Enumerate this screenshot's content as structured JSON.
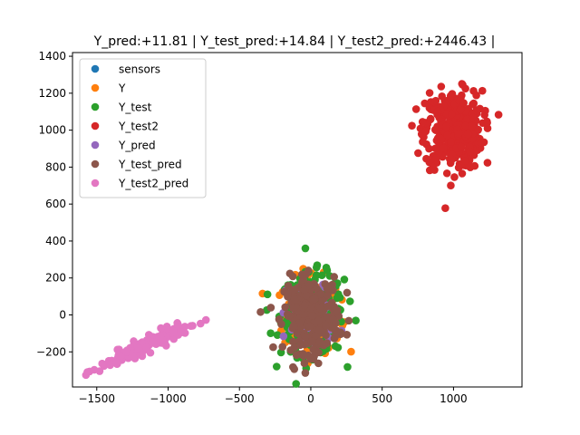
{
  "chart_data": {
    "type": "scatter",
    "title": "Y_pred:+11.81 | Y_test_pred:+14.84 | Y_test2_pred:+2446.43 |",
    "xlabel": "",
    "ylabel": "",
    "xlim": [
      -1670,
      1480
    ],
    "ylim": [
      -390,
      1420
    ],
    "grid": false,
    "legend_position": "top-left",
    "x_ticks": [
      -1500,
      -1000,
      -500,
      0,
      500,
      1000
    ],
    "x_tick_labels": [
      "−1500",
      "−1000",
      "−500",
      "0",
      "500",
      "1000"
    ],
    "y_ticks": [
      -200,
      0,
      200,
      400,
      600,
      800,
      1000,
      1200,
      1400
    ],
    "y_tick_labels": [
      "−200",
      "0",
      "200",
      "400",
      "600",
      "800",
      "1000",
      "1200",
      "1400"
    ],
    "series": [
      {
        "name": "sensors",
        "color": "#1f77b4",
        "clusters": [
          {
            "center": [
              0,
              0
            ],
            "spread": [
              0,
              0
            ],
            "n": 0
          }
        ]
      },
      {
        "name": "Y",
        "color": "#ff7f0e",
        "clusters": [
          {
            "center": [
              10,
              0
            ],
            "spread": [
              100,
              100
            ],
            "n": 220
          }
        ]
      },
      {
        "name": "Y_test",
        "color": "#2ca02c",
        "clusters": [
          {
            "center": [
              10,
              0
            ],
            "spread": [
              110,
              110
            ],
            "n": 260
          }
        ]
      },
      {
        "name": "Y_test2",
        "color": "#d62728",
        "clusters": [
          {
            "center": [
              1000,
              1000
            ],
            "spread": [
              100,
              105
            ],
            "n": 380
          }
        ]
      },
      {
        "name": "Y_pred",
        "color": "#9467bd",
        "clusters": [
          {
            "center": [
              10,
              0
            ],
            "spread": [
              90,
              90
            ],
            "n": 60
          }
        ]
      },
      {
        "name": "Y_test_pred",
        "color": "#8c564b",
        "clusters": [
          {
            "center": [
              5,
              0
            ],
            "spread": [
              95,
              100
            ],
            "n": 260
          }
        ]
      },
      {
        "name": "Y_test2_pred",
        "color": "#e377c2",
        "clusters": [
          {
            "center": [
              -1180,
              -175
            ],
            "spread": [
              150,
              20
            ],
            "n": 180,
            "slope": 0.35
          }
        ]
      }
    ]
  }
}
